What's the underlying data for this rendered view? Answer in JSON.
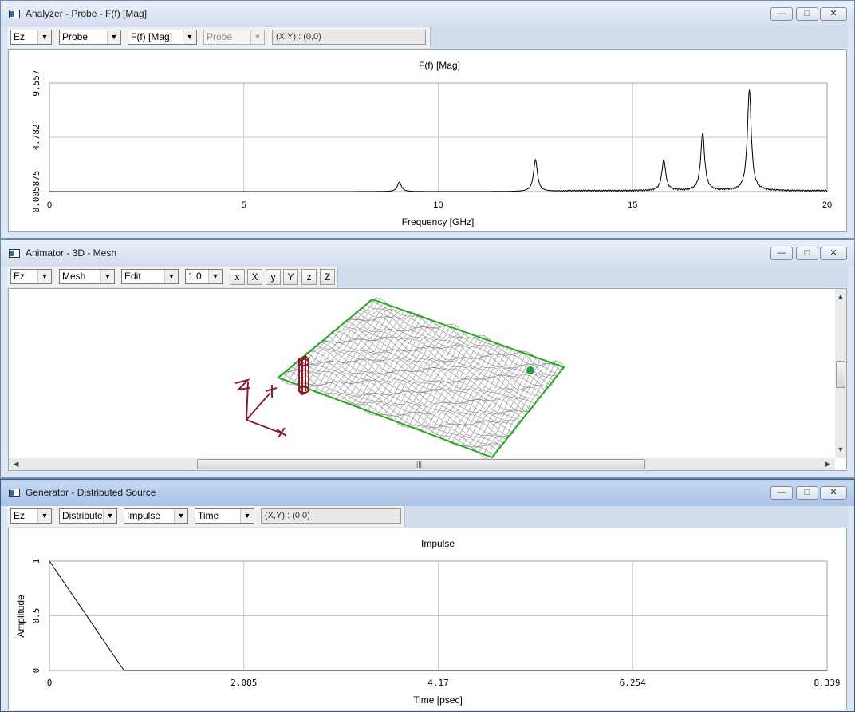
{
  "analyzer": {
    "title": "Analyzer - Probe - F(f) [Mag]",
    "toolbar": {
      "field": "Ez",
      "source": "Probe",
      "plot": "F(f) [Mag]",
      "probe_disabled": "Probe",
      "readout": "(X,Y) : (0,0)"
    },
    "chart_data": {
      "type": "line",
      "title": "F(f) [Mag]",
      "xlabel": "Frequency [GHz]",
      "xlim": [
        0,
        20
      ],
      "ylim": [
        0.005875,
        9.557
      ],
      "x_ticks": [
        "0",
        "5",
        "10",
        "15",
        "20"
      ],
      "y_ticks": [
        "0.005875",
        "4.782",
        "9.557"
      ],
      "grid": true,
      "peaks": [
        {
          "f": 9.0,
          "mag": 0.85
        },
        {
          "f": 12.5,
          "mag": 2.8
        },
        {
          "f": 15.8,
          "mag": 2.7
        },
        {
          "f": 16.8,
          "mag": 5.1
        },
        {
          "f": 18.0,
          "mag": 8.9
        }
      ]
    }
  },
  "animator": {
    "title": "Animator - 3D - Mesh",
    "toolbar": {
      "field": "Ez",
      "view": "Mesh",
      "mode": "Edit",
      "scale": "1.0",
      "axes": [
        "x",
        "X",
        "y",
        "Y",
        "z",
        "Z"
      ]
    },
    "colors": {
      "mesh": "#8a8a8a",
      "plate_edge": "#22aa22",
      "source": "#8b1a2a",
      "probe": "#2a9a3a"
    },
    "icons": {
      "scroll_up": "triangle-up",
      "scroll_down": "triangle-down",
      "scroll_left": "triangle-left",
      "scroll_right": "triangle-right",
      "grip": "grip-lines"
    }
  },
  "generator": {
    "title": "Generator - Distributed Source",
    "toolbar": {
      "field": "Ez",
      "source": "Distributed",
      "waveform": "Impulse",
      "domain": "Time",
      "readout": "(X,Y) : (0,0)"
    },
    "chart_data": {
      "type": "line",
      "title": "Impulse",
      "xlabel": "Time [psec]",
      "ylabel": "Amplitude",
      "xlim": [
        0,
        8.339
      ],
      "ylim": [
        0,
        1
      ],
      "x_ticks": [
        "0",
        "2.085",
        "4.17",
        "6.254",
        "8.339"
      ],
      "y_ticks": [
        "0",
        "0.5",
        "1"
      ],
      "grid": true,
      "x": [
        0,
        0.8,
        8.339
      ],
      "y": [
        1,
        0,
        0
      ]
    }
  }
}
